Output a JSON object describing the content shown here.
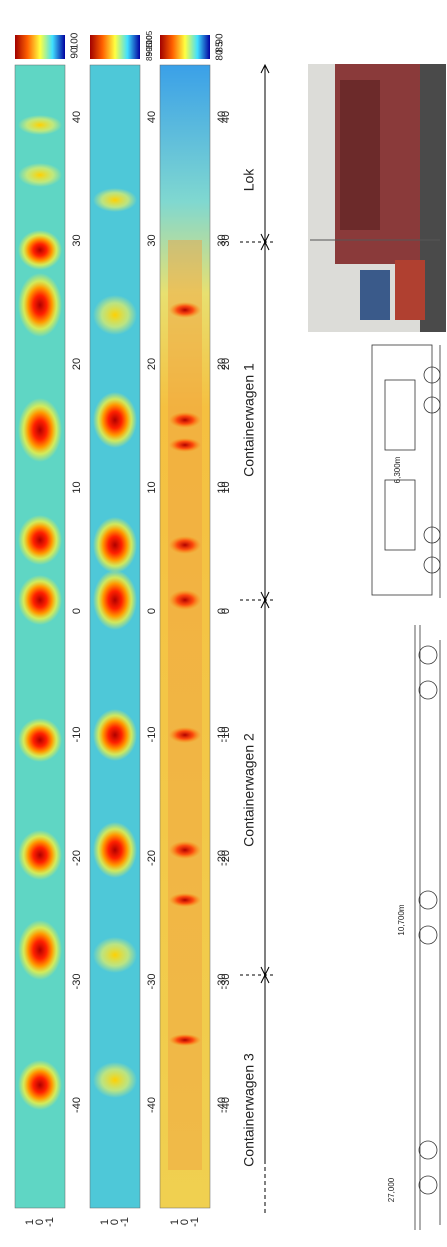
{
  "panels": [
    {
      "colorbar_labels": [
        "100",
        "90"
      ],
      "y_labels": [
        "1",
        "0",
        "-1"
      ],
      "x_labels": [
        "40",
        "30",
        "20",
        "10",
        "0",
        "-10",
        "-20",
        "-30",
        "-40"
      ]
    },
    {
      "colorbar_labels": [
        "105",
        "100",
        "95",
        "90",
        "85"
      ],
      "y_labels": [
        "1",
        "0",
        "-1"
      ],
      "x_labels": [
        "40",
        "30",
        "20",
        "10",
        "0",
        "-10",
        "-20",
        "-30",
        "-40"
      ]
    },
    {
      "colorbar_labels": [
        "90",
        "85",
        "80"
      ],
      "y_labels": [
        "1",
        "0",
        "-1"
      ],
      "x_labels": [
        "40",
        "30",
        "20",
        "10",
        "0",
        "-10",
        "-20",
        "-30",
        "-40"
      ]
    }
  ],
  "axis_labels": [
    "40",
    "30",
    "20",
    "10",
    "0",
    "-10",
    "-20",
    "-30",
    "-40"
  ],
  "sections": [
    "Lok",
    "Containerwagen 1",
    "Containerwagen 2",
    "Containerwagen 3"
  ],
  "drawing_labels": [
    "6,300m",
    "10,700m",
    "27,000"
  ]
}
